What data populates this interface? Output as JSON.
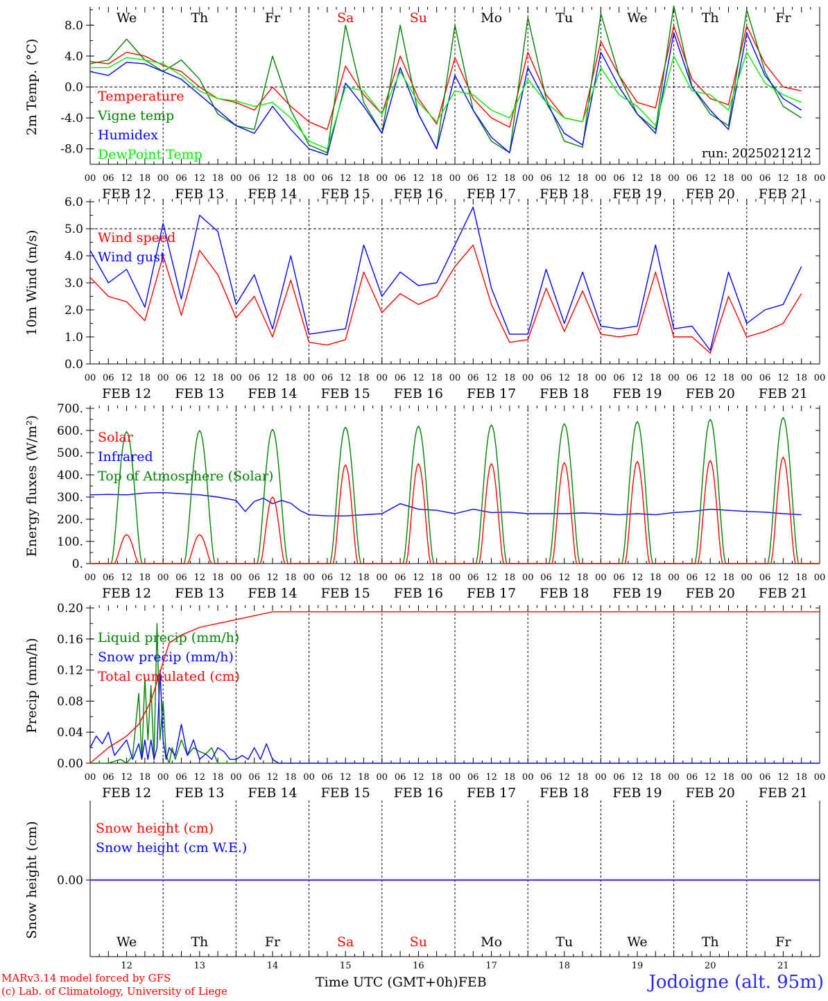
{
  "chart_data": [
    {
      "type": "line",
      "id": "temp",
      "ylabel": "2m Temp. (°C)",
      "ylim": [
        -10,
        10
      ],
      "yticks": [
        "-8.0",
        "-4.0",
        "0.0",
        "4.0",
        "8.0"
      ],
      "ytick_values": [
        -8,
        -4,
        0,
        4,
        8
      ],
      "zero_line": true,
      "annotation": "run: 2025021212",
      "x_hours": [
        0,
        6,
        12,
        18,
        24,
        30,
        36,
        42,
        48,
        54,
        60,
        66,
        72,
        78,
        84,
        90,
        96,
        102,
        108,
        114,
        120,
        126,
        132,
        138,
        144,
        150,
        156,
        162,
        168,
        174,
        180,
        186,
        192,
        198,
        204,
        210,
        216,
        222,
        228,
        234
      ],
      "series": [
        {
          "name": "Temperature",
          "color": "#ff0000",
          "values": [
            3.3,
            3.0,
            4.5,
            4.0,
            2.8,
            2.0,
            0.0,
            -1.5,
            -2.0,
            -3.0,
            0.0,
            -2.5,
            -4.5,
            -5.5,
            2.7,
            -1.0,
            -3.5,
            4.0,
            -1.5,
            -4.8,
            3.8,
            -1.5,
            -4.0,
            -5.2,
            4.5,
            -1.0,
            -4.0,
            -4.5,
            5.9,
            1.5,
            -2.0,
            -2.7,
            7.9,
            1.0,
            -1.5,
            -2.3,
            7.9,
            3.0,
            0.0,
            -0.5
          ]
        },
        {
          "name": "Vigne temp",
          "color": "#008000",
          "values": [
            3.0,
            3.5,
            6.2,
            3.5,
            2.0,
            3.5,
            1.0,
            -3.5,
            -5.0,
            -5.5,
            4.0,
            -3.0,
            -7.5,
            -8.5,
            8.0,
            -2.0,
            -6.0,
            8.0,
            -3.5,
            -8.0,
            8.0,
            -3.0,
            -7.0,
            -8.5,
            9.0,
            -1.5,
            -7.0,
            -7.8,
            9.5,
            1.5,
            -3.5,
            -5.5,
            10.5,
            0.0,
            -3.5,
            -5.0,
            10.0,
            2.0,
            -2.5,
            -4.0
          ]
        },
        {
          "name": "Humidex",
          "color": "#0000ff",
          "values": [
            2.0,
            1.5,
            3.2,
            3.0,
            2.0,
            1.0,
            -1.0,
            -3.0,
            -5.0,
            -6.0,
            -2.5,
            -5.5,
            -8.0,
            -8.8,
            0.5,
            -2.5,
            -6.0,
            2.5,
            -3.5,
            -8.0,
            1.5,
            -3.0,
            -6.5,
            -8.5,
            2.5,
            -2.0,
            -6.0,
            -7.5,
            4.5,
            0.0,
            -3.5,
            -6.0,
            7.0,
            0.0,
            -3.0,
            -5.5,
            7.0,
            1.5,
            -1.5,
            -3.0
          ]
        },
        {
          "name": "DewPoint Temp",
          "color": "#00ee00",
          "values": [
            2.5,
            2.5,
            3.8,
            3.5,
            3.0,
            1.5,
            -0.5,
            -1.5,
            -1.8,
            -2.5,
            -2.0,
            -4.0,
            -7.0,
            -8.0,
            0.0,
            -0.5,
            -3.5,
            2.0,
            -2.0,
            -4.5,
            -0.5,
            -1.0,
            -3.0,
            -4.0,
            1.0,
            -2.0,
            -4.0,
            -4.5,
            2.5,
            -1.0,
            -2.5,
            -5.0,
            4.0,
            -0.5,
            -1.0,
            -3.0,
            4.5,
            0.5,
            -1.0,
            -2.0
          ]
        }
      ]
    },
    {
      "type": "line",
      "id": "wind",
      "ylabel": "10m Wind (m/s)",
      "ylim": [
        0,
        6
      ],
      "yticks": [
        "0.0",
        "1.0",
        "2.0",
        "3.0",
        "4.0",
        "5.0",
        "6.0"
      ],
      "ytick_values": [
        0,
        1,
        2,
        3,
        4,
        5,
        6
      ],
      "ref_line": 5,
      "x_hours": [
        0,
        6,
        12,
        18,
        24,
        30,
        36,
        42,
        48,
        54,
        60,
        66,
        72,
        78,
        84,
        90,
        96,
        102,
        108,
        114,
        120,
        126,
        132,
        138,
        144,
        150,
        156,
        162,
        168,
        174,
        180,
        186,
        192,
        198,
        204,
        210,
        216,
        222,
        228,
        234
      ],
      "series": [
        {
          "name": "Wind speed",
          "color": "#ff0000",
          "values": [
            3.2,
            2.5,
            2.3,
            1.6,
            4.0,
            1.8,
            4.2,
            3.3,
            1.7,
            2.5,
            1.0,
            3.1,
            0.8,
            0.7,
            0.9,
            3.4,
            1.9,
            2.6,
            2.2,
            2.5,
            3.6,
            4.4,
            2.2,
            0.8,
            0.9,
            2.8,
            1.2,
            2.7,
            1.1,
            1.0,
            1.1,
            3.4,
            1.0,
            1.0,
            0.4,
            2.5,
            1.0,
            1.2,
            1.5,
            2.6
          ]
        },
        {
          "name": "Wind gust",
          "color": "#0000ff",
          "values": [
            4.2,
            3.0,
            3.5,
            2.1,
            5.2,
            2.4,
            5.5,
            4.9,
            2.2,
            3.3,
            1.3,
            4.0,
            1.1,
            1.2,
            1.3,
            4.4,
            2.5,
            3.4,
            2.9,
            3.0,
            4.4,
            5.8,
            2.8,
            1.1,
            1.1,
            3.5,
            1.5,
            3.4,
            1.4,
            1.3,
            1.4,
            4.4,
            1.3,
            1.4,
            0.5,
            3.4,
            1.5,
            2.0,
            2.2,
            3.6
          ]
        }
      ]
    },
    {
      "type": "line",
      "id": "energy",
      "ylabel": "Energy fluxes (W/m²)",
      "ylim": [
        0,
        700
      ],
      "yticks": [
        "0.",
        "100.",
        "200.",
        "300.",
        "400.",
        "500.",
        "600.",
        "700."
      ],
      "ytick_values": [
        0,
        100,
        200,
        300,
        400,
        500,
        600,
        700
      ],
      "daily_peaks": {
        "solar": [
          130,
          130,
          300,
          445,
          450,
          450,
          455,
          460,
          465,
          480
        ],
        "toa": [
          595,
          600,
          605,
          615,
          620,
          625,
          630,
          640,
          650,
          658
        ]
      },
      "series": [
        {
          "name": "Solar",
          "color": "#ff0000"
        },
        {
          "name": "Infrared",
          "color": "#0000ff",
          "x_hours": [
            0,
            6,
            12,
            18,
            24,
            30,
            36,
            42,
            48,
            51,
            54,
            57,
            60,
            63,
            66,
            69,
            72,
            78,
            84,
            96,
            102,
            108,
            114,
            120,
            126,
            132,
            138,
            144,
            150,
            156,
            162,
            168,
            174,
            180,
            186,
            192,
            198,
            204,
            210,
            216,
            222,
            228,
            234
          ],
          "values": [
            310,
            312,
            310,
            318,
            320,
            315,
            310,
            300,
            285,
            235,
            280,
            295,
            270,
            285,
            272,
            240,
            220,
            215,
            215,
            225,
            270,
            245,
            240,
            225,
            245,
            230,
            232,
            225,
            225,
            225,
            228,
            225,
            220,
            225,
            220,
            230,
            235,
            245,
            240,
            235,
            232,
            225,
            220
          ]
        },
        {
          "name": "Top of Atmosphere (Solar)",
          "color": "#008000"
        }
      ]
    },
    {
      "type": "line",
      "id": "precip",
      "ylabel": "Precip (mm/h)",
      "ylim": [
        0,
        0.2
      ],
      "yticks": [
        "0.00",
        "0.04",
        "0.08",
        "0.12",
        "0.16",
        "0.20"
      ],
      "ytick_values": [
        0,
        0.04,
        0.08,
        0.12,
        0.16,
        0.2
      ],
      "series": [
        {
          "name": "Liquid precip (mm/h)",
          "color": "#008000",
          "x_hours": [
            0,
            6,
            10,
            12,
            14,
            16,
            17,
            18,
            19,
            20,
            21,
            22,
            23,
            24,
            25,
            26,
            27,
            28,
            30,
            32,
            34,
            36,
            38,
            40,
            42,
            48
          ],
          "values": [
            0,
            0,
            0.005,
            0,
            0.01,
            0.09,
            0.005,
            0.11,
            0.03,
            0.1,
            0.005,
            0.18,
            0.03,
            0.08,
            0.01,
            0.0,
            0.02,
            0.005,
            0.03,
            0.01,
            0.02,
            0.015,
            0.012,
            0.02,
            0,
            0
          ]
        },
        {
          "name": "Snow precip (mm/h)",
          "color": "#0000ff",
          "x_hours": [
            0,
            2,
            4,
            6,
            8,
            10,
            12,
            14,
            16,
            17,
            18,
            19,
            20,
            21,
            22,
            23,
            24,
            25,
            26,
            28,
            30,
            32,
            34,
            36,
            38,
            40,
            42,
            44,
            46,
            48,
            50,
            52,
            54,
            56,
            58,
            60,
            62,
            64,
            240
          ],
          "values": [
            0.02,
            0.035,
            0.025,
            0.04,
            0.01,
            0.02,
            0.03,
            0.005,
            0.025,
            0.005,
            0.03,
            0.005,
            0.03,
            0.005,
            0.02,
            0.12,
            0.03,
            0.005,
            0.02,
            0.01,
            0.05,
            0.01,
            0.03,
            0.005,
            0.012,
            0.005,
            0.02,
            0.015,
            0.005,
            0.005,
            0.01,
            0.005,
            0.02,
            0.005,
            0.025,
            0.005,
            0,
            0,
            0
          ]
        },
        {
          "name": "Total cumulated (cm)",
          "color": "#ff0000",
          "x_hours": [
            0,
            6,
            12,
            16,
            20,
            24,
            26,
            30,
            36,
            42,
            48,
            54,
            60,
            240
          ],
          "values": [
            0,
            0.02,
            0.035,
            0.05,
            0.08,
            0.13,
            0.155,
            0.165,
            0.175,
            0.18,
            0.185,
            0.19,
            0.195,
            0.195
          ]
        }
      ]
    },
    {
      "type": "line",
      "id": "snow",
      "ylabel": "Snow height (cm)",
      "ylim": [
        -1,
        1
      ],
      "yticks": [
        "0.00"
      ],
      "ytick_values": [
        0
      ],
      "series": [
        {
          "name": "Snow height (cm)",
          "color": "#ff0000",
          "x_hours": [
            0,
            240
          ],
          "values": [
            0,
            0
          ]
        },
        {
          "name": "Snow height (cm W.E.)",
          "color": "#0000ff",
          "x_hours": [
            0,
            240
          ],
          "values": [
            0,
            0
          ]
        }
      ]
    }
  ],
  "days": {
    "weekdays": [
      "We",
      "Th",
      "Fr",
      "Sa",
      "Su",
      "Mo",
      "Tu",
      "We",
      "Th",
      "Fr"
    ],
    "weekend_flags": [
      false,
      false,
      false,
      true,
      true,
      false,
      false,
      false,
      false,
      false
    ],
    "date_labels": [
      "FEB 12",
      "FEB 13",
      "FEB 14",
      "FEB 15",
      "FEB 16",
      "FEB 17",
      "FEB 18",
      "FEB 19",
      "FEB 20",
      "FEB 21"
    ],
    "day_numbers": [
      "12",
      "13",
      "14",
      "15",
      "16",
      "17",
      "18",
      "19",
      "20",
      "21"
    ],
    "hour_ticks": [
      "00",
      "06",
      "12",
      "18"
    ],
    "final_hour": "00",
    "weekday_color": "#000000",
    "weekend_color": "#ff0000"
  },
  "footer": {
    "credit_line1": "MARv3.14 model forced by GFS",
    "credit_line2": "(c) Lab. of Climatology, University of Liege",
    "xaxis_title": "Time UTC (GMT+0h)",
    "month": "FEB",
    "location": "Jodoigne (alt. 95m)"
  }
}
